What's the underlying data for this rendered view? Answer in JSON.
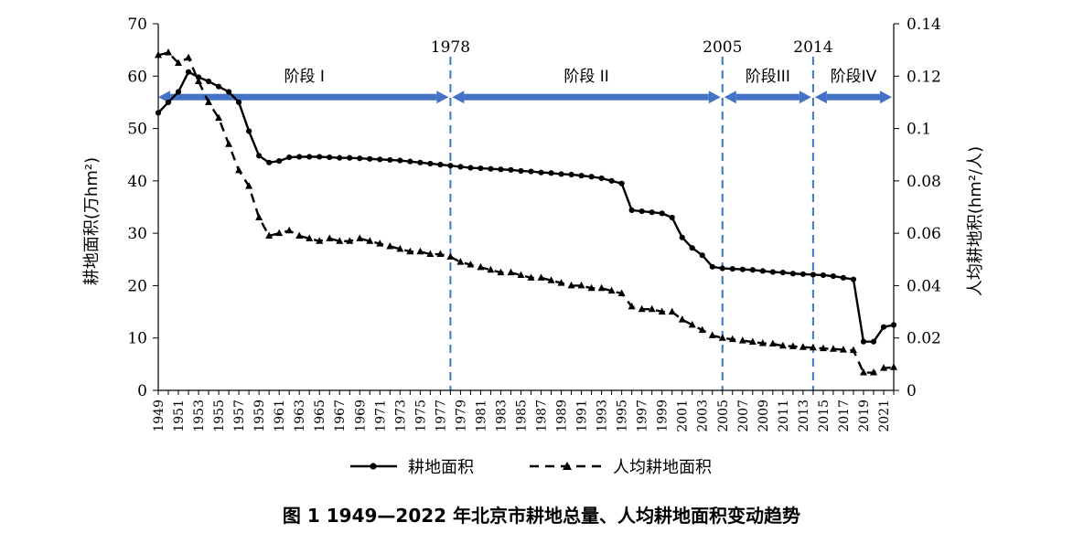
{
  "colors": {
    "stage_arrow": "#4472c4",
    "divider": "#3b78c9",
    "series": "#000000"
  },
  "caption": "图 1    1949—2022 年北京市耕地总量、人均耕地面积变动趋势",
  "chart_data": {
    "type": "line",
    "title": "",
    "xlabel": "",
    "ylabel_left": "耕地面积(万hm²)",
    "ylabel_right": "人均耕地积(hm²/人)",
    "x_range": [
      1949,
      2022
    ],
    "ylim_left": [
      0,
      70
    ],
    "ylim_right": [
      0,
      0.14
    ],
    "yticks_left": [
      0,
      10,
      20,
      30,
      40,
      50,
      60,
      70
    ],
    "yticks_right": [
      "0",
      "0.02",
      "0.04",
      "0.06",
      "0.08",
      "0.1",
      "0.12",
      "0.14"
    ],
    "yticks_right_values": [
      0,
      0.02,
      0.04,
      0.06,
      0.08,
      0.1,
      0.12,
      0.14
    ],
    "xtick_labels": [
      "1949",
      "1951",
      "1953",
      "1955",
      "1957",
      "1959",
      "1961",
      "1963",
      "1965",
      "1967",
      "1969",
      "1971",
      "1973",
      "1975",
      "1977",
      "1979",
      "1981",
      "1983",
      "1985",
      "1987",
      "1989",
      "1991",
      "1993",
      "1995",
      "1997",
      "1999",
      "2001",
      "2003",
      "2005",
      "2007",
      "2009",
      "2011",
      "2013",
      "2015",
      "2017",
      "2019",
      "2021"
    ],
    "vertical_lines": [
      {
        "year": 1978,
        "label": "1978"
      },
      {
        "year": 2005,
        "label": "2005"
      },
      {
        "year": 2014,
        "label": "2014"
      }
    ],
    "stages": [
      {
        "label": "阶段 I",
        "from": 1949,
        "to": 1978
      },
      {
        "label": "阶段 II",
        "from": 1978,
        "to": 2005
      },
      {
        "label": "阶段III",
        "from": 2005,
        "to": 2014
      },
      {
        "label": "阶段IV",
        "from": 2014,
        "to": 2022
      }
    ],
    "stage_arrow_level": 56,
    "legend": {
      "position": "bottom-center"
    },
    "series": [
      {
        "name": "耕地面积",
        "axis": "left",
        "style": "solid-circle",
        "x": [
          1949,
          1950,
          1951,
          1952,
          1953,
          1954,
          1955,
          1956,
          1957,
          1958,
          1959,
          1960,
          1961,
          1962,
          1963,
          1964,
          1965,
          1966,
          1967,
          1968,
          1969,
          1970,
          1971,
          1972,
          1973,
          1974,
          1975,
          1976,
          1977,
          1978,
          1979,
          1980,
          1981,
          1982,
          1983,
          1984,
          1985,
          1986,
          1987,
          1988,
          1989,
          1990,
          1991,
          1992,
          1993,
          1994,
          1995,
          1996,
          1997,
          1998,
          1999,
          2000,
          2001,
          2002,
          2003,
          2004,
          2005,
          2006,
          2007,
          2008,
          2009,
          2010,
          2011,
          2012,
          2013,
          2014,
          2015,
          2016,
          2017,
          2018,
          2019,
          2020,
          2021,
          2022
        ],
        "values": [
          53.0,
          55.0,
          57.0,
          60.8,
          59.8,
          59.0,
          58.0,
          57.0,
          55.0,
          49.5,
          44.8,
          43.5,
          43.8,
          44.5,
          44.6,
          44.6,
          44.6,
          44.5,
          44.4,
          44.4,
          44.3,
          44.2,
          44.1,
          44.0,
          43.9,
          43.7,
          43.5,
          43.3,
          43.1,
          42.9,
          42.7,
          42.5,
          42.4,
          42.3,
          42.2,
          42.1,
          41.9,
          41.8,
          41.6,
          41.5,
          41.3,
          41.2,
          41.0,
          40.8,
          40.5,
          40.0,
          39.5,
          34.4,
          34.2,
          34.0,
          33.8,
          33.0,
          29.2,
          27.2,
          25.8,
          23.6,
          23.3,
          23.2,
          23.1,
          23.0,
          22.8,
          22.6,
          22.5,
          22.3,
          22.2,
          22.1,
          22.0,
          21.8,
          21.5,
          21.2,
          9.3,
          9.3,
          12.1,
          12.5
        ]
      },
      {
        "name": "人均耕地面积",
        "axis": "right",
        "style": "dashed-triangle",
        "x": [
          1949,
          1950,
          1951,
          1952,
          1953,
          1954,
          1955,
          1956,
          1957,
          1958,
          1959,
          1960,
          1961,
          1962,
          1963,
          1964,
          1965,
          1966,
          1967,
          1968,
          1969,
          1970,
          1971,
          1972,
          1973,
          1974,
          1975,
          1976,
          1977,
          1978,
          1979,
          1980,
          1981,
          1982,
          1983,
          1984,
          1985,
          1986,
          1987,
          1988,
          1989,
          1990,
          1991,
          1992,
          1993,
          1994,
          1995,
          1996,
          1997,
          1998,
          1999,
          2000,
          2001,
          2002,
          2003,
          2004,
          2005,
          2006,
          2007,
          2008,
          2009,
          2010,
          2011,
          2012,
          2013,
          2014,
          2015,
          2016,
          2017,
          2018,
          2019,
          2020,
          2021,
          2022
        ],
        "values": [
          0.128,
          0.129,
          0.125,
          0.127,
          0.118,
          0.11,
          0.104,
          0.094,
          0.084,
          0.078,
          0.066,
          0.059,
          0.06,
          0.061,
          0.059,
          0.058,
          0.057,
          0.058,
          0.057,
          0.057,
          0.058,
          0.057,
          0.056,
          0.055,
          0.054,
          0.053,
          0.053,
          0.052,
          0.052,
          0.051,
          0.049,
          0.048,
          0.047,
          0.046,
          0.045,
          0.045,
          0.044,
          0.043,
          0.043,
          0.042,
          0.041,
          0.04,
          0.04,
          0.039,
          0.039,
          0.038,
          0.037,
          0.032,
          0.031,
          0.031,
          0.03,
          0.03,
          0.027,
          0.025,
          0.023,
          0.021,
          0.02,
          0.0195,
          0.019,
          0.0185,
          0.018,
          0.0178,
          0.017,
          0.0168,
          0.0165,
          0.0163,
          0.016,
          0.0158,
          0.0155,
          0.0153,
          0.0068,
          0.0068,
          0.0085,
          0.0088
        ]
      }
    ]
  }
}
